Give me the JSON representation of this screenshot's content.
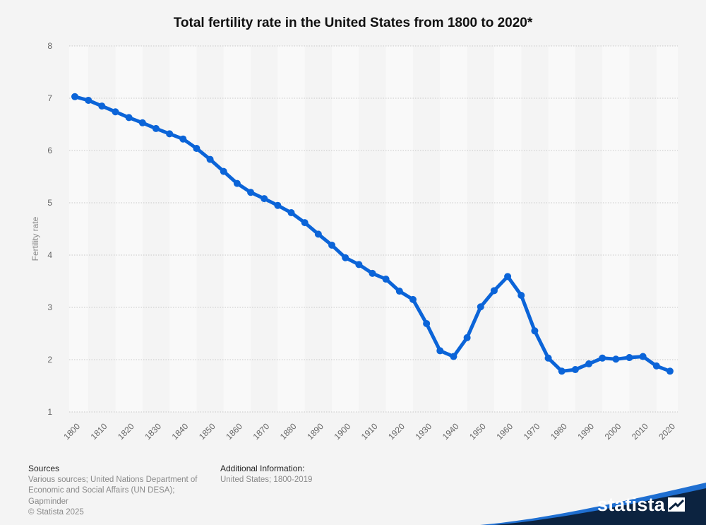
{
  "title": "Total fertility rate in the United States from 1800 to 2020*",
  "sources_heading": "Sources",
  "sources_lines": [
    "Various sources; United Nations Department of",
    "Economic and Social Affairs (UN DESA);",
    "Gapminder",
    "© Statista 2025"
  ],
  "additional_heading": "Additional Information:",
  "additional_text": "United States; 1800-2019",
  "brand": "statista",
  "colors": {
    "line": "#0b64d8",
    "band": "#f9f9f9",
    "background": "#f4f4f4",
    "brand_dark": "#0c2340",
    "brand_accent": "#1f6fd1"
  },
  "chart_data": {
    "type": "line",
    "ylabel": "Fertility rate",
    "xlabel": "",
    "ylim": [
      1,
      8
    ],
    "yticks": [
      1,
      2,
      3,
      4,
      5,
      6,
      7,
      8
    ],
    "xticks": [
      1800,
      1810,
      1820,
      1830,
      1840,
      1850,
      1860,
      1870,
      1880,
      1890,
      1900,
      1910,
      1920,
      1930,
      1940,
      1950,
      1960,
      1970,
      1980,
      1990,
      2000,
      2010,
      2020
    ],
    "grid": true,
    "series": [
      {
        "x": [
          1800,
          1805,
          1810,
          1815,
          1820,
          1825,
          1830,
          1835,
          1840,
          1845,
          1850,
          1855,
          1860,
          1865,
          1870,
          1875,
          1880,
          1885,
          1890,
          1895,
          1900,
          1905,
          1910,
          1915,
          1920,
          1925,
          1930,
          1935,
          1940,
          1945,
          1950,
          1955,
          1960,
          1965,
          1970,
          1975,
          1980,
          1985,
          1990,
          1995,
          2000,
          2005,
          2010,
          2015,
          2020
        ],
        "y": [
          7.03,
          6.96,
          6.85,
          6.74,
          6.63,
          6.53,
          6.42,
          6.32,
          6.22,
          6.04,
          5.83,
          5.6,
          5.37,
          5.2,
          5.08,
          4.95,
          4.81,
          4.62,
          4.4,
          4.19,
          3.95,
          3.82,
          3.65,
          3.54,
          3.31,
          3.15,
          2.69,
          2.17,
          2.06,
          2.42,
          3.01,
          3.32,
          3.59,
          3.23,
          2.55,
          2.03,
          1.78,
          1.81,
          1.92,
          2.03,
          2.01,
          2.04,
          2.06,
          1.88,
          1.78
        ]
      }
    ]
  }
}
